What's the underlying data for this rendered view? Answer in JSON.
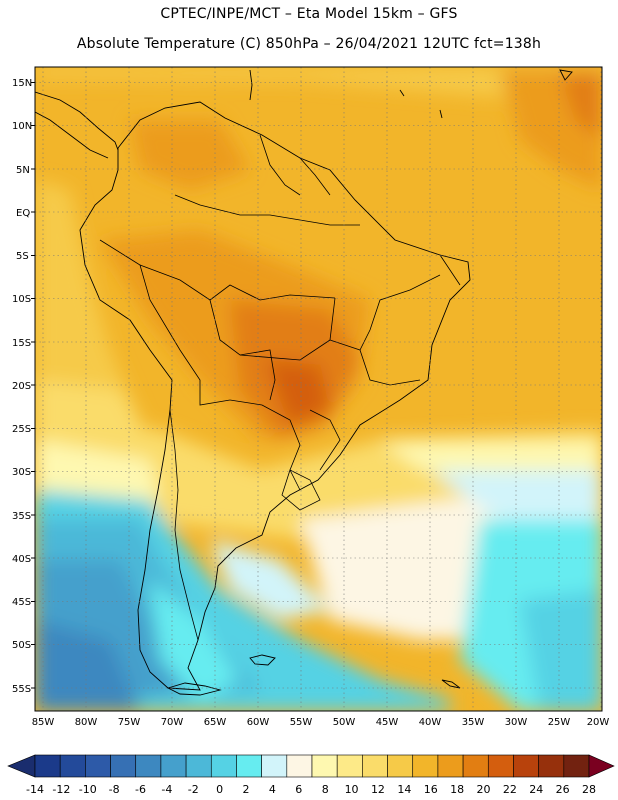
{
  "title_line1": "CPTEC/INPE/MCT –  Eta Model 15km – GFS",
  "title_line2": "Absolute Temperature (C) 850hPa – 26/04/2021 12UTC fct=138h",
  "lat_labels": [
    "15N",
    "10N",
    "5N",
    "EQ",
    "5S",
    "10S",
    "15S",
    "20S",
    "25S",
    "30S",
    "35S",
    "40S",
    "45S",
    "50S",
    "55S"
  ],
  "lon_labels": [
    "85W",
    "80W",
    "75W",
    "70W",
    "65W",
    "60W",
    "55W",
    "50W",
    "45W",
    "40W",
    "35W",
    "30W",
    "25W",
    "20W"
  ],
  "colorbar": {
    "labels": [
      "-14",
      "-12",
      "-10",
      "-8",
      "-6",
      "-4",
      "-2",
      "0",
      "2",
      "4",
      "6",
      "8",
      "10",
      "12",
      "14",
      "16",
      "18",
      "20",
      "22",
      "24",
      "26",
      "28"
    ],
    "colors": [
      "#1b3a8a",
      "#234a9a",
      "#2d5aa8",
      "#3670b4",
      "#3d88c0",
      "#45a0cc",
      "#4cb8d8",
      "#55d2e4",
      "#66ecf0",
      "#d2f4fa",
      "#fdf6e4",
      "#fef8b0",
      "#fdea88",
      "#fadc6a",
      "#f6ca48",
      "#f2b52a",
      "#ec9c1c",
      "#e27e12",
      "#d45e0e",
      "#b8420c",
      "#96300c",
      "#722210"
    ],
    "low_color": "#1a2d6e",
    "high_color": "#7a0020"
  }
}
